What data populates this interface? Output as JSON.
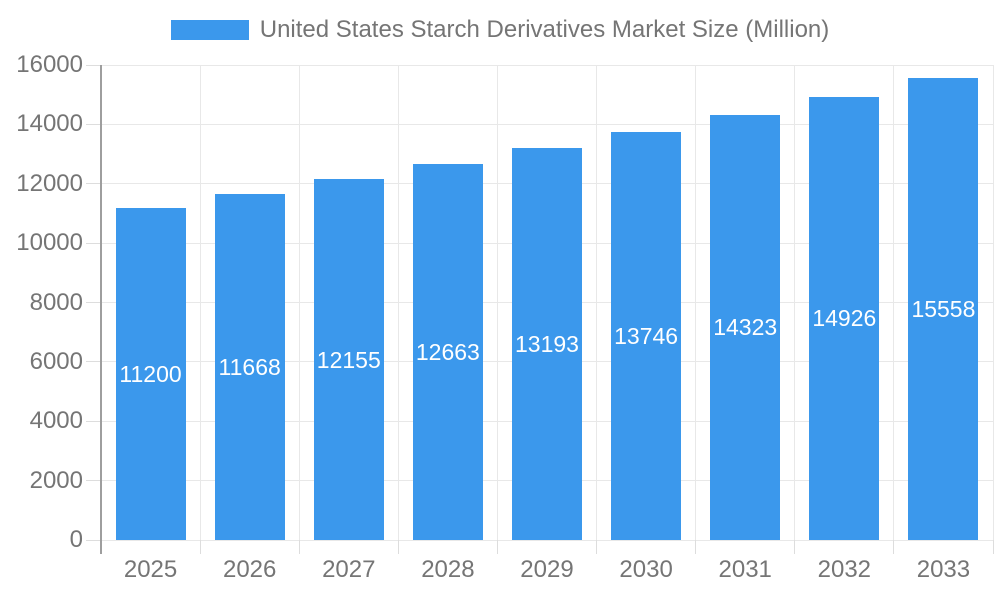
{
  "chart_data": {
    "type": "bar",
    "title": "United States Starch Derivatives Market Size (Million)",
    "categories": [
      "2025",
      "2026",
      "2027",
      "2028",
      "2029",
      "2030",
      "2031",
      "2032",
      "2033"
    ],
    "values": [
      11200,
      11668,
      12155,
      12663,
      13193,
      13746,
      14323,
      14926,
      15558
    ],
    "xlabel": "",
    "ylabel": "",
    "ylim": [
      0,
      16000
    ],
    "ytick_step": 2000,
    "yticks": [
      0,
      2000,
      4000,
      6000,
      8000,
      10000,
      12000,
      14000,
      16000
    ],
    "grid": "horizontal and vertical gridlines on",
    "legend_position": "top-center",
    "value_labels": "inside bars, vertically centered, white",
    "colors": {
      "bar": "#3B98EC",
      "grid": "#E8E8E8",
      "tick": "#DDDDDD",
      "axis": "#9E9E9E",
      "label_text": "#757575",
      "value_label_text": "#FFFFFF",
      "background": "#FFFFFF"
    }
  }
}
